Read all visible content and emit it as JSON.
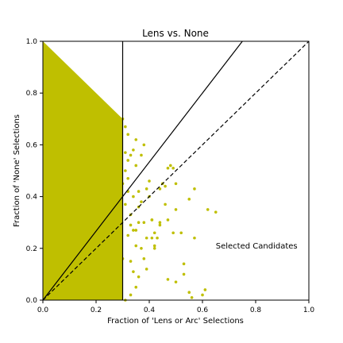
{
  "chart_data": {
    "type": "scatter",
    "title": "Lens vs. None",
    "xlabel": "Fraction of 'Lens or Arc' Selections",
    "ylabel": "Fraction of 'None' Selections",
    "xlim": [
      0,
      1
    ],
    "ylim": [
      0,
      1
    ],
    "x_ticks": [
      "0.0",
      "0.2",
      "0.4",
      "0.6",
      "0.8",
      "1.0"
    ],
    "y_ticks": [
      "0.0",
      "0.2",
      "0.4",
      "0.6",
      "0.8",
      "1.0"
    ],
    "tick_values": [
      0,
      0.2,
      0.4,
      0.6,
      0.8,
      1.0
    ],
    "grid": false,
    "marker_color": "#bfbf00",
    "annotation": "Selected Candidates",
    "annotation_position": [
      0.65,
      0.2
    ],
    "reference_lines": [
      {
        "kind": "vertical",
        "x": 0.3,
        "style": "solid"
      },
      {
        "kind": "line",
        "points": [
          [
            0,
            0
          ],
          [
            0.75,
            1
          ]
        ],
        "style": "solid"
      },
      {
        "kind": "line",
        "points": [
          [
            0,
            0
          ],
          [
            1,
            1
          ]
        ],
        "style": "dashed"
      }
    ],
    "dense_region_note": "Most points fill the triangle x + y <= 1 for x in [0, 0.3], densest near x < 0.15",
    "points": [
      [
        0.38,
        0.6
      ],
      [
        0.37,
        0.56
      ],
      [
        0.35,
        0.52
      ],
      [
        0.33,
        0.56
      ],
      [
        0.32,
        0.47
      ],
      [
        0.34,
        0.4
      ],
      [
        0.36,
        0.42
      ],
      [
        0.37,
        0.38
      ],
      [
        0.39,
        0.43
      ],
      [
        0.4,
        0.46
      ],
      [
        0.38,
        0.3
      ],
      [
        0.36,
        0.3
      ],
      [
        0.39,
        0.24
      ],
      [
        0.37,
        0.2
      ],
      [
        0.38,
        0.16
      ],
      [
        0.41,
        0.31
      ],
      [
        0.41,
        0.24
      ],
      [
        0.42,
        0.2
      ],
      [
        0.42,
        0.26
      ],
      [
        0.43,
        0.24
      ],
      [
        0.42,
        0.21
      ],
      [
        0.44,
        0.43
      ],
      [
        0.45,
        0.45
      ],
      [
        0.46,
        0.44
      ],
      [
        0.47,
        0.51
      ],
      [
        0.48,
        0.52
      ],
      [
        0.49,
        0.51
      ],
      [
        0.5,
        0.45
      ],
      [
        0.46,
        0.37
      ],
      [
        0.44,
        0.3
      ],
      [
        0.47,
        0.31
      ],
      [
        0.49,
        0.26
      ],
      [
        0.52,
        0.26
      ],
      [
        0.5,
        0.35
      ],
      [
        0.57,
        0.43
      ],
      [
        0.55,
        0.39
      ],
      [
        0.62,
        0.35
      ],
      [
        0.65,
        0.34
      ],
      [
        0.57,
        0.24
      ],
      [
        0.47,
        0.08
      ],
      [
        0.5,
        0.07
      ],
      [
        0.53,
        0.14
      ],
      [
        0.53,
        0.1
      ],
      [
        0.55,
        0.03
      ],
      [
        0.56,
        0.01
      ],
      [
        0.61,
        0.04
      ],
      [
        0.6,
        0.02
      ],
      [
        0.4,
        0.4
      ],
      [
        0.36,
        0.36
      ],
      [
        0.33,
        0.33
      ],
      [
        0.34,
        0.27
      ],
      [
        0.35,
        0.27
      ],
      [
        0.32,
        0.25
      ],
      [
        0.35,
        0.21
      ],
      [
        0.33,
        0.15
      ],
      [
        0.34,
        0.11
      ],
      [
        0.36,
        0.09
      ],
      [
        0.35,
        0.05
      ],
      [
        0.33,
        0.02
      ],
      [
        0.31,
        0.0
      ],
      [
        0.39,
        0.12
      ],
      [
        0.31,
        0.67
      ],
      [
        0.32,
        0.64
      ],
      [
        0.3,
        0.7
      ],
      [
        0.31,
        0.57
      ],
      [
        0.34,
        0.58
      ],
      [
        0.35,
        0.62
      ],
      [
        0.41,
        0.31
      ],
      [
        0.44,
        0.29
      ],
      [
        0.3,
        0.16
      ],
      [
        0.31,
        0.37
      ],
      [
        0.32,
        0.42
      ],
      [
        0.33,
        0.29
      ],
      [
        0.3,
        0.45
      ],
      [
        0.31,
        0.5
      ],
      [
        0.32,
        0.54
      ]
    ]
  }
}
